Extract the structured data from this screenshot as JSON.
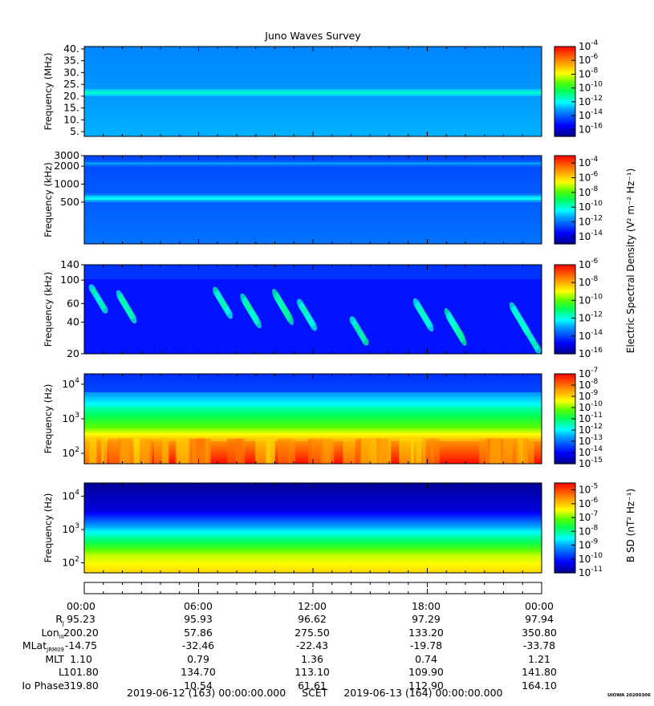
{
  "title": "Juno Waves Survey",
  "colors": {
    "frame": "#000000",
    "background": "#ffffff",
    "grid": "#000000"
  },
  "chart_data": [
    {
      "type": "heatmap",
      "panel": "hf-high",
      "ylabel": "Frequency (MHz)",
      "yscale": "linear",
      "ylim": [
        3,
        41
      ],
      "yticks": [
        {
          "v": 5,
          "l": "5."
        },
        {
          "v": 10,
          "l": "10."
        },
        {
          "v": 15,
          "l": "15."
        },
        {
          "v": 20,
          "l": "20."
        },
        {
          "v": 25,
          "l": "25."
        },
        {
          "v": 30,
          "l": "30."
        },
        {
          "v": 35,
          "l": "35."
        },
        {
          "v": 40,
          "l": "40."
        }
      ],
      "bands": [
        {
          "f": 21.5,
          "level": -11.5
        }
      ],
      "background_level": -13.2,
      "colorbar": {
        "min_exp": -17,
        "max_exp": -4,
        "ticks": [
          {
            "exp": -4,
            "label": "10"
          },
          {
            "exp": -6,
            "label": "10"
          },
          {
            "exp": -8,
            "label": "10"
          },
          {
            "exp": -10,
            "label": "10"
          },
          {
            "exp": -12,
            "label": "10"
          },
          {
            "exp": -14,
            "label": "10"
          },
          {
            "exp": -16,
            "label": "10"
          }
        ]
      }
    },
    {
      "type": "heatmap",
      "panel": "hf-low",
      "ylabel": "Frequency (kHz)",
      "yscale": "log",
      "ylim": [
        100,
        3000
      ],
      "yticks": [
        {
          "v": 500,
          "l": "500"
        },
        {
          "v": 1000,
          "l": "1000"
        },
        {
          "v": 2000,
          "l": "2000"
        },
        {
          "v": 3000,
          "l": "3000"
        }
      ],
      "bands": [
        {
          "f": 2200,
          "level": -11.3
        },
        {
          "f": 580,
          "level": -10.2
        }
      ],
      "background_level": -12.3,
      "colorbar": {
        "min_exp": -15,
        "max_exp": -3,
        "ticks": [
          {
            "exp": -4,
            "label": "10"
          },
          {
            "exp": -6,
            "label": "10"
          },
          {
            "exp": -8,
            "label": "10"
          },
          {
            "exp": -10,
            "label": "10"
          },
          {
            "exp": -12,
            "label": "10"
          },
          {
            "exp": -14,
            "label": "10"
          }
        ]
      }
    },
    {
      "type": "heatmap",
      "panel": "lfr-high",
      "ylabel": "Frequency (kHz)",
      "yscale": "log",
      "ylim": [
        20,
        140
      ],
      "yticks": [
        {
          "v": 20,
          "l": "20"
        },
        {
          "v": 40,
          "l": "40"
        },
        {
          "v": 60,
          "l": "60"
        },
        {
          "v": 100,
          "l": "100"
        },
        {
          "v": 140,
          "l": "140"
        }
      ],
      "background_level": -14.6,
      "colorbar": {
        "min_exp": -16,
        "max_exp": -6,
        "ticks": [
          {
            "exp": -6,
            "label": "10"
          },
          {
            "exp": -8,
            "label": "10"
          },
          {
            "exp": -10,
            "label": "10"
          },
          {
            "exp": -12,
            "label": "10"
          },
          {
            "exp": -14,
            "label": "10"
          },
          {
            "exp": -16,
            "label": "10"
          }
        ]
      }
    },
    {
      "type": "heatmap",
      "panel": "lfr-low",
      "ylabel": "Frequency (Hz)",
      "yscale": "log",
      "ylim": [
        50,
        20000
      ],
      "yticks": [
        {
          "v": 100,
          "l": "10",
          "e": "2"
        },
        {
          "v": 1000,
          "l": "10",
          "e": "3"
        },
        {
          "v": 10000,
          "l": "10",
          "e": "4"
        }
      ],
      "colorbar": {
        "min_exp": -15,
        "max_exp": -7,
        "ticks": [
          {
            "exp": -7,
            "label": "10"
          },
          {
            "exp": -8,
            "label": "10"
          },
          {
            "exp": -9,
            "label": "10"
          },
          {
            "exp": -10,
            "label": "10"
          },
          {
            "exp": -11,
            "label": "10"
          },
          {
            "exp": -12,
            "label": "10"
          },
          {
            "exp": -13,
            "label": "10"
          },
          {
            "exp": -14,
            "label": "10"
          },
          {
            "exp": -15,
            "label": "10"
          }
        ]
      }
    },
    {
      "type": "heatmap",
      "panel": "magnetic",
      "ylabel": "Frequency (Hz)",
      "yscale": "log",
      "ylim": [
        50,
        25000
      ],
      "yticks": [
        {
          "v": 100,
          "l": "10",
          "e": "2"
        },
        {
          "v": 1000,
          "l": "10",
          "e": "3"
        },
        {
          "v": 10000,
          "l": "10",
          "e": "4"
        }
      ],
      "colorbar": {
        "min_exp": -11,
        "max_exp": -4.5,
        "ticks": [
          {
            "exp": -5,
            "label": "10"
          },
          {
            "exp": -6,
            "label": "10"
          },
          {
            "exp": -7,
            "label": "10"
          },
          {
            "exp": -8,
            "label": "10"
          },
          {
            "exp": -9,
            "label": "10"
          },
          {
            "exp": -10,
            "label": "10"
          },
          {
            "exp": -11,
            "label": "10"
          }
        ]
      }
    }
  ],
  "colorbar_label_electric": "Electric Spectral Density (V² m⁻² Hz⁻¹)",
  "colorbar_label_magnetic": "B SD (nT² Hz⁻¹)",
  "time_axis": {
    "ticks": [
      "00:00",
      "06:00",
      "12:00",
      "18:00",
      "00:00"
    ]
  },
  "ephemeris": [
    {
      "label": "R",
      "sub": "J",
      "values": [
        "95.23",
        "95.93",
        "96.62",
        "97.29",
        "97.94"
      ]
    },
    {
      "label": "Lon",
      "sub": "III",
      "values": [
        "200.20",
        "57.86",
        "275.50",
        "133.20",
        "350.80"
      ]
    },
    {
      "label": "MLat",
      "sub": "JRM09",
      "values": [
        "-14.75",
        "-32.46",
        "-22.43",
        "-19.78",
        "-33.78"
      ]
    },
    {
      "label": "MLT",
      "sub": "",
      "values": [
        "1.10",
        "0.79",
        "1.36",
        "0.74",
        "1.21"
      ]
    },
    {
      "label": "L",
      "sub": "",
      "values": [
        "101.80",
        "134.70",
        "113.10",
        "109.90",
        "141.80"
      ]
    },
    {
      "label": "Io Phase",
      "sub": "",
      "values": [
        "319.80",
        "10.54",
        "61.61",
        "112.90",
        "164.10"
      ]
    }
  ],
  "footer": {
    "start": "2019-06-12 (163) 00:00:00.000",
    "scet": "SCET",
    "end": "2019-06-13 (164) 00:00:00.000"
  },
  "stamp": "UIOWA 20200306"
}
